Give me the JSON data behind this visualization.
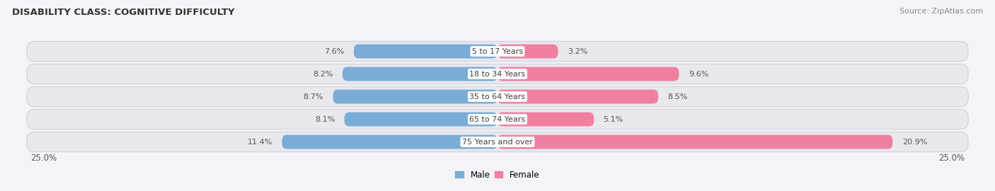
{
  "title": "DISABILITY CLASS: COGNITIVE DIFFICULTY",
  "source": "Source: ZipAtlas.com",
  "categories": [
    "5 to 17 Years",
    "18 to 34 Years",
    "35 to 64 Years",
    "65 to 74 Years",
    "75 Years and over"
  ],
  "male_values": [
    7.6,
    8.2,
    8.7,
    8.1,
    11.4
  ],
  "female_values": [
    3.2,
    9.6,
    8.5,
    5.1,
    20.9
  ],
  "max_val": 25.0,
  "male_color_light": "#aac8e8",
  "male_color_mid": "#7aacd6",
  "female_color_light": "#f7bfce",
  "female_color_mid": "#f080a0",
  "row_bg_color": "#e8e8ef",
  "row_border_color": "#d0d0db",
  "title_color": "#333333",
  "value_color": "#555555",
  "cat_label_color": "#444444",
  "source_color": "#888888",
  "legend_male_color": "#7aacd6",
  "legend_female_color": "#f080a0",
  "bg_color": "#f4f4f8"
}
